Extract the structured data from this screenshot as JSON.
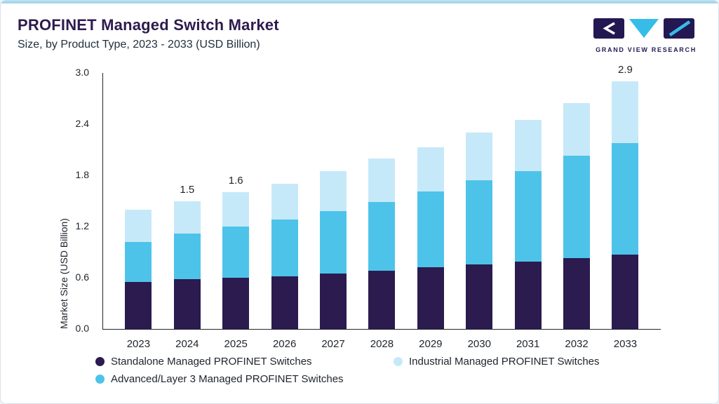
{
  "header": {
    "title": "PROFINET Managed Switch Market",
    "subtitle": "Size, by Product Type, 2023 - 2033 (USD Billion)",
    "logo_text": "GRAND VIEW RESEARCH"
  },
  "style": {
    "top_accent": "#A5D8ED",
    "title_color": "#2D1B4E",
    "axis_color": "#20262E",
    "brand_dark": "#241852",
    "brand_cyan": "#35BDE8"
  },
  "chart_data": {
    "type": "bar",
    "stacked": true,
    "title": "PROFINET Managed Switch Market Size, by Product Type, 2023 - 2033 (USD Billion)",
    "xlabel": "",
    "ylabel": "Market Size (USD Billion)",
    "ylim": [
      0,
      3.0
    ],
    "yticks": [
      0.0,
      0.6,
      1.2,
      1.8,
      2.4,
      3.0
    ],
    "grid": false,
    "legend_position": "bottom",
    "categories": [
      "2023",
      "2024",
      "2025",
      "2026",
      "2027",
      "2028",
      "2029",
      "2030",
      "2031",
      "2032",
      "2033"
    ],
    "series": [
      {
        "name": "Standalone Managed PROFINET Switches",
        "color": "#2B1B4F",
        "values": [
          0.55,
          0.58,
          0.6,
          0.62,
          0.65,
          0.68,
          0.72,
          0.76,
          0.79,
          0.83,
          0.87
        ]
      },
      {
        "name": "Advanced/Layer 3 Managed PROFINET Switches",
        "color": "#4EC3EA",
        "values": [
          0.47,
          0.54,
          0.6,
          0.66,
          0.73,
          0.81,
          0.89,
          0.98,
          1.06,
          1.2,
          1.31
        ]
      },
      {
        "name": "Industrial Managed PROFINET Switches",
        "color": "#C6E9F9",
        "values": [
          0.38,
          0.38,
          0.4,
          0.42,
          0.47,
          0.51,
          0.52,
          0.56,
          0.6,
          0.62,
          0.72
        ]
      }
    ],
    "totals": [
      1.4,
      1.5,
      1.6,
      1.7,
      1.85,
      2.0,
      2.13,
      2.3,
      2.45,
      2.65,
      2.9
    ],
    "annotations": [
      {
        "category": "2024",
        "text": "1.5"
      },
      {
        "category": "2025",
        "text": "1.6"
      },
      {
        "category": "2033",
        "text": "2.9"
      }
    ]
  },
  "legend": [
    {
      "label": "Standalone Managed PROFINET Switches",
      "color": "#2B1B4F"
    },
    {
      "label": "Industrial Managed PROFINET Switches",
      "color": "#C6E9F9"
    },
    {
      "label": "Advanced/Layer 3 Managed PROFINET Switches",
      "color": "#4EC3EA"
    }
  ]
}
